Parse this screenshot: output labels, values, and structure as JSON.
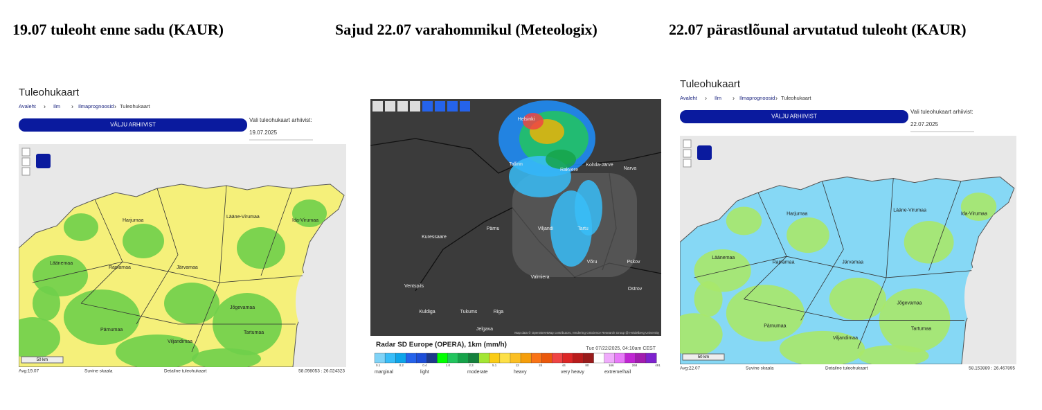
{
  "titles": [
    "19.07 tuleoht enne sadu (KAUR)",
    "Sajud 22.07 varahommikul (Meteologix)",
    "22.07 pärastlõunal arvutatud tuleoht (KAUR)"
  ],
  "panels": [
    {
      "heading": "Tuleohukaart",
      "breadcrumb": [
        "Avaleht",
        "Ilm",
        "Ilmaprognoosid",
        "Tuleohukaart"
      ],
      "button": "VÄLJU ARHIIVIST",
      "archive_label": "Vali tuleohukaart arhiivist:",
      "date": "19.07.2025",
      "regions": [
        "Harjumaa",
        "Lääne-Virumaa",
        "Ida-Virumaa",
        "Läänemaa",
        "Raplamaa",
        "Järvamaa",
        "Jõgevamaa",
        "Pärnumaa",
        "Viljandimaa",
        "Tartumaa"
      ],
      "scale": "50 km",
      "footer": [
        "Avg:19.07",
        "Suvine skaala",
        "Detailne tuleohukaart",
        "58.098053 : 26.024323"
      ]
    },
    {
      "cities": [
        "Helsinki",
        "Tallinn",
        "Rakvere",
        "Kohtla-Järve",
        "Narva",
        "Kuressaare",
        "Pärnu",
        "Viljandi",
        "Tartu",
        "Võru",
        "Pskov",
        "Ventspils",
        "Valmiera",
        "Ostrov",
        "Kuldiga",
        "Tukums",
        "Riga",
        "Jelgava"
      ],
      "legend_title": "Radar SD Europe (OPERA), 1km (mm/h)",
      "timestamp": "Tue 07/22/2025, 04:10am CEST",
      "scale_values": [
        "0.1",
        "0.2",
        "0.4",
        "1.0",
        "2.3",
        "5.1",
        "12",
        "24",
        "44",
        "80",
        "166",
        "268",
        "491"
      ],
      "scale_labels": [
        "marginal",
        "light",
        "moderate",
        "heavy",
        "very heavy",
        "extreme/hail"
      ],
      "attribution": "Map data © OpenStreetMap contributors, rendering GIScience Research Group @ Heidelberg University"
    },
    {
      "heading": "Tuleohukaart",
      "breadcrumb": [
        "Avaleht",
        "Ilm",
        "Ilmaprognoosid",
        "Tuleohukaart"
      ],
      "button": "VÄLJU ARHIIVIST",
      "archive_label": "Vali tuleohukaart arhiivist:",
      "date": "22.07.2025",
      "regions": [
        "Harjumaa",
        "Lääne-Virumaa",
        "Ida-Virumaa",
        "Läänemaa",
        "Raplamaa",
        "Järvamaa",
        "Jõgevamaa",
        "Pärnumaa",
        "Viljandimaa",
        "Tartumaa"
      ],
      "scale": "50 km",
      "footer": [
        "Avg:22.07",
        "Suvine skaala",
        "Detailne tuleohukaart",
        "58.153889 : 26.467895"
      ]
    }
  ]
}
